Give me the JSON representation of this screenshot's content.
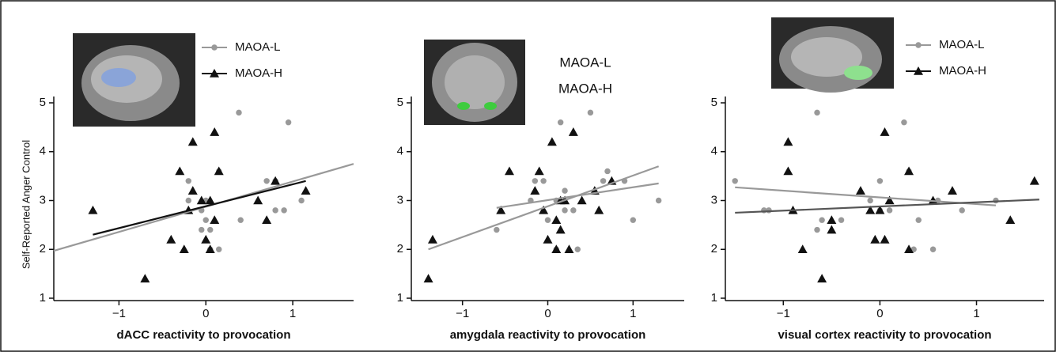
{
  "chart_data": [
    {
      "type": "scatter",
      "x_label": "dACC reactivity to provocation",
      "y_label": "Self-Reported Anger Control",
      "xlim": [
        -1.75,
        1.7
      ],
      "ylim": [
        1,
        5
      ],
      "xticks": [
        {
          "value": -1,
          "label": "−1"
        },
        0,
        1
      ],
      "yticks": [
        1,
        2,
        3,
        4,
        5
      ],
      "legend_markers": true,
      "series": [
        {
          "name": "MAOA-L",
          "color": "#999999",
          "marker": "circle",
          "x": [
            0.38,
            0.95,
            -0.2,
            0.15,
            0.7,
            0.8,
            0.9,
            1.1,
            0.4,
            -0.2,
            -0.05,
            0.0,
            -0.05,
            0.05,
            0.15,
            0.05,
            0.0,
            0.8
          ],
          "values": [
            4.8,
            4.6,
            3.4,
            3.6,
            3.4,
            2.8,
            2.8,
            3.0,
            2.6,
            3.0,
            2.8,
            2.6,
            2.4,
            2.0,
            2.0,
            2.4,
            3.0,
            3.4
          ]
        },
        {
          "name": "MAOA-H",
          "color": "#111111",
          "marker": "triangle",
          "x": [
            -1.3,
            -0.7,
            -0.15,
            0.1,
            -0.3,
            -0.15,
            -0.2,
            -0.4,
            -0.25,
            0.0,
            0.05,
            0.1,
            0.15,
            0.6,
            0.7,
            0.8,
            1.15,
            0.05,
            -0.05
          ],
          "values": [
            2.8,
            1.4,
            4.2,
            4.4,
            3.6,
            3.2,
            2.8,
            2.2,
            2.0,
            2.2,
            2.0,
            2.6,
            3.6,
            3.0,
            2.6,
            3.4,
            3.2,
            3.0,
            3.0
          ]
        }
      ],
      "trend_lines": [
        {
          "color": "#999999",
          "x": [
            -1.75,
            1.7
          ],
          "values": [
            1.97,
            3.75
          ]
        },
        {
          "color": "#111111",
          "x": [
            -1.3,
            1.15
          ],
          "values": [
            2.3,
            3.4
          ]
        }
      ]
    },
    {
      "type": "scatter",
      "x_label": "amygdala reactivity to provocation",
      "xlim": [
        -1.6,
        1.6
      ],
      "ylim": [
        1,
        5
      ],
      "xticks": [
        {
          "value": -1,
          "label": "−1"
        },
        0,
        1
      ],
      "yticks": [
        1,
        2,
        3,
        4,
        5
      ],
      "legend_markers": false,
      "series": [
        {
          "name": "MAOA-L",
          "color": "#999999",
          "marker": "circle",
          "x": [
            -0.6,
            -0.15,
            -0.05,
            -0.2,
            0.0,
            0.1,
            0.2,
            0.3,
            0.35,
            0.15,
            0.5,
            0.65,
            0.7,
            1.0,
            1.3,
            0.2,
            0.1,
            0.9
          ],
          "values": [
            2.4,
            3.4,
            3.4,
            3.0,
            2.6,
            2.0,
            2.8,
            2.8,
            2.0,
            4.6,
            4.8,
            3.4,
            3.6,
            2.6,
            3.0,
            3.2,
            3.0,
            3.4
          ]
        },
        {
          "name": "MAOA-H",
          "color": "#111111",
          "marker": "triangle",
          "x": [
            -1.4,
            -1.35,
            -0.45,
            -0.55,
            -0.15,
            -0.05,
            0.0,
            0.1,
            0.15,
            0.1,
            0.05,
            0.3,
            0.2,
            0.25,
            0.4,
            0.55,
            0.6,
            0.75,
            0.15,
            -0.1
          ],
          "values": [
            1.4,
            2.2,
            3.6,
            2.8,
            3.2,
            2.8,
            2.2,
            2.0,
            2.4,
            2.6,
            4.2,
            4.4,
            3.0,
            2.0,
            3.0,
            3.2,
            2.8,
            3.4,
            3.0,
            3.6
          ]
        }
      ],
      "trend_lines": [
        {
          "color": "#999999",
          "x": [
            -1.4,
            1.3
          ],
          "values": [
            2.0,
            3.7
          ]
        },
        {
          "color": "#999999",
          "x": [
            -0.6,
            1.3
          ],
          "values": [
            2.85,
            3.35
          ]
        }
      ]
    },
    {
      "type": "scatter",
      "x_label": "visual cortex reactivity to provocation",
      "xlim": [
        -1.6,
        1.7
      ],
      "ylim": [
        1,
        5
      ],
      "xticks": [
        {
          "value": -1,
          "label": "−1"
        },
        0,
        1
      ],
      "yticks": [
        1,
        2,
        3,
        4,
        5
      ],
      "legend_markers": true,
      "series": [
        {
          "name": "MAOA-L",
          "color": "#999999",
          "marker": "circle",
          "x": [
            -1.5,
            -1.2,
            -1.15,
            -0.65,
            -0.65,
            -0.6,
            -0.4,
            0.0,
            0.0,
            0.25,
            0.3,
            0.35,
            0.4,
            0.55,
            0.6,
            0.85,
            1.2,
            0.1,
            -0.1
          ],
          "values": [
            3.4,
            2.8,
            2.8,
            4.8,
            2.4,
            2.6,
            2.6,
            2.8,
            3.4,
            4.6,
            3.6,
            2.0,
            2.6,
            2.0,
            3.0,
            2.8,
            3.0,
            2.8,
            3.0
          ]
        },
        {
          "name": "MAOA-H",
          "color": "#111111",
          "marker": "triangle",
          "x": [
            -0.95,
            -0.95,
            -0.9,
            -0.8,
            -0.6,
            -0.5,
            -0.5,
            -0.2,
            -0.1,
            -0.05,
            0.05,
            0.05,
            0.1,
            0.3,
            0.3,
            0.55,
            0.75,
            1.35,
            1.6,
            0.0
          ],
          "values": [
            4.2,
            3.6,
            2.8,
            2.0,
            1.4,
            2.4,
            2.6,
            3.2,
            2.8,
            2.2,
            4.4,
            2.2,
            3.0,
            2.0,
            3.6,
            3.0,
            3.2,
            2.6,
            3.4,
            2.8
          ]
        }
      ],
      "trend_lines": [
        {
          "color": "#999999",
          "x": [
            -1.5,
            1.2
          ],
          "values": [
            3.27,
            2.9
          ]
        },
        {
          "color": "#555555",
          "x": [
            -1.5,
            1.65
          ],
          "values": [
            2.75,
            3.02
          ]
        }
      ]
    }
  ]
}
